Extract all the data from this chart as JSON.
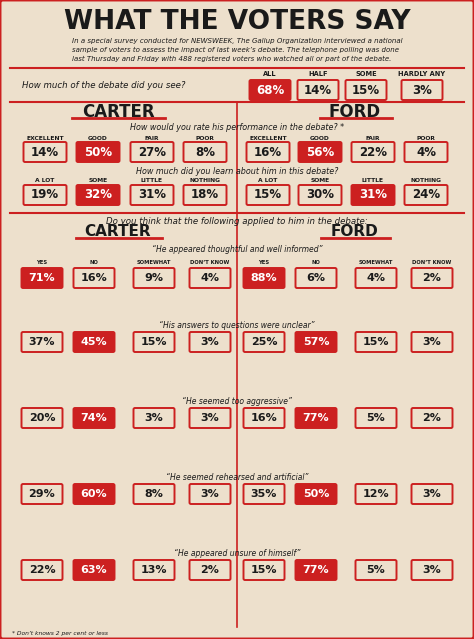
{
  "title": "WHAT THE VOTERS SAY",
  "subtitle": "In a special survey conducted for NEWSWEEK, The Gallup Organization interviewed a national\nsample of voters to assess the impact of last week’s debate. The telephone polling was done\nlast Thursday and Friday with 488 registered voters who watched all or part of the debate.",
  "bg_color": "#ede0cc",
  "red_color": "#cc2020",
  "text_dark": "#1a1a1a",
  "debate_watched_label": "How much of the debate did you see?",
  "debate_watched_cols": [
    "ALL",
    "HALF",
    "SOME",
    "HARDLY ANY"
  ],
  "debate_watched_vals": [
    "68%",
    "14%",
    "15%",
    "3%"
  ],
  "debate_watched_highlight": [
    true,
    false,
    false,
    false
  ],
  "section1_question": "How would you rate his performance in the debate? *",
  "section1_cols": [
    "EXCELLENT",
    "GOOD",
    "FAIR",
    "POOR"
  ],
  "section1_carter": [
    "14%",
    "50%",
    "27%",
    "8%"
  ],
  "section1_ford": [
    "16%",
    "56%",
    "22%",
    "4%"
  ],
  "section1_carter_highlight": [
    false,
    true,
    false,
    false
  ],
  "section1_ford_highlight": [
    false,
    true,
    false,
    false
  ],
  "section2_question": "How much did you learn about him in this debate?",
  "section2_cols": [
    "A LOT",
    "SOME",
    "LITTLE",
    "NOTHING"
  ],
  "section2_carter": [
    "19%",
    "32%",
    "31%",
    "18%"
  ],
  "section2_ford": [
    "15%",
    "30%",
    "31%",
    "24%"
  ],
  "section2_carter_highlight": [
    false,
    true,
    false,
    false
  ],
  "section2_ford_highlight": [
    false,
    false,
    true,
    false
  ],
  "section3_question": "Do you think that the following applied to him in the debate:",
  "section3_cols": [
    "YES",
    "NO",
    "SOMEWHAT",
    "DON’T KNOW"
  ],
  "statements": [
    "“He appeared thoughtful and well informed”",
    "“His answers to questions were unclear”",
    "“He seemed too aggressive”",
    "“He seemed rehearsed and artificial”",
    "“He appeared unsure of himself”"
  ],
  "section3_carter": [
    [
      "71%",
      "16%",
      "9%",
      "4%"
    ],
    [
      "37%",
      "45%",
      "15%",
      "3%"
    ],
    [
      "20%",
      "74%",
      "3%",
      "3%"
    ],
    [
      "29%",
      "60%",
      "8%",
      "3%"
    ],
    [
      "22%",
      "63%",
      "13%",
      "2%"
    ]
  ],
  "section3_ford": [
    [
      "88%",
      "6%",
      "4%",
      "2%"
    ],
    [
      "25%",
      "57%",
      "15%",
      "3%"
    ],
    [
      "16%",
      "77%",
      "5%",
      "2%"
    ],
    [
      "35%",
      "50%",
      "12%",
      "3%"
    ],
    [
      "15%",
      "77%",
      "5%",
      "3%"
    ]
  ],
  "section3_carter_highlight": [
    [
      true,
      false,
      false,
      false
    ],
    [
      false,
      true,
      false,
      false
    ],
    [
      false,
      true,
      false,
      false
    ],
    [
      false,
      true,
      false,
      false
    ],
    [
      false,
      true,
      false,
      false
    ]
  ],
  "section3_ford_highlight": [
    [
      true,
      false,
      false,
      false
    ],
    [
      false,
      true,
      false,
      false
    ],
    [
      false,
      true,
      false,
      false
    ],
    [
      false,
      true,
      false,
      false
    ],
    [
      false,
      true,
      false,
      false
    ]
  ],
  "footnote": "* Don’t knows 2 per cent or less"
}
